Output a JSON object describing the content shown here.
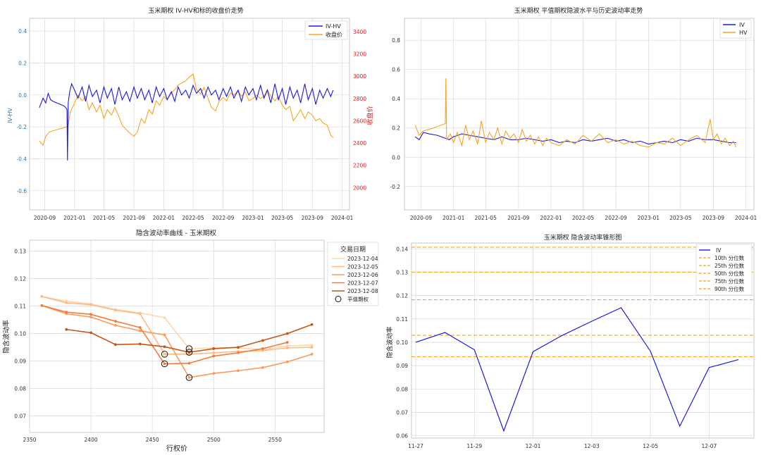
{
  "colors": {
    "iv": "#1a1adc",
    "hv": "#f5a623",
    "red": "#e02020",
    "blue_axis": "#1f77b4",
    "grid": "#d9d9d9",
    "frame": "#b8b8b8"
  },
  "chart_data": [
    {
      "id": "p1",
      "type": "line",
      "title": "玉米期权 IV-HV和标的收盘价走势",
      "ylabel": "IV-HV",
      "y2label": "收盘价",
      "ylim": [
        -0.72,
        0.48
      ],
      "y2lim": [
        1800,
        3520
      ],
      "yticks": [
        "-0.6",
        "-0.4",
        "-0.2",
        "0.0",
        "0.2",
        "0.4"
      ],
      "y2ticks": [
        "2000",
        "2200",
        "2400",
        "2600",
        "2800",
        "3000",
        "3200",
        "3400"
      ],
      "xticks": [
        "2020-09",
        "2021-01",
        "2021-05",
        "2021-09",
        "2022-01",
        "2022-05",
        "2022-09",
        "2023-01",
        "2023-05",
        "2023-09",
        "2024-01"
      ],
      "xlim": [
        "2020-07-01",
        "2024-01-31"
      ],
      "legend": [
        "IV-HV",
        "收盘价"
      ],
      "legend_position": "top-right",
      "series": [
        {
          "name": "IV-HV",
          "axis": "left",
          "x": [
            "2020-08-10",
            "2020-08-25",
            "2020-09-05",
            "2020-09-15",
            "2020-09-25",
            "2020-10-05",
            "2020-10-20",
            "2020-11-05",
            "2020-11-20",
            "2020-12-01",
            "2020-12-03",
            "2020-12-06",
            "2020-12-12",
            "2020-12-20",
            "2021-01-01",
            "2021-01-15",
            "2021-02-01",
            "2021-02-15",
            "2021-03-01",
            "2021-03-15",
            "2021-04-01",
            "2021-04-15",
            "2021-05-01",
            "2021-05-15",
            "2021-06-01",
            "2021-06-15",
            "2021-07-01",
            "2021-07-15",
            "2021-08-01",
            "2021-08-15",
            "2021-09-01",
            "2021-09-15",
            "2021-10-01",
            "2021-10-15",
            "2021-11-01",
            "2021-11-15",
            "2021-12-01",
            "2021-12-15",
            "2022-01-01",
            "2022-01-15",
            "2022-02-01",
            "2022-02-15",
            "2022-03-01",
            "2022-03-15",
            "2022-04-01",
            "2022-04-15",
            "2022-05-01",
            "2022-05-15",
            "2022-06-01",
            "2022-06-15",
            "2022-07-01",
            "2022-07-15",
            "2022-08-01",
            "2022-08-15",
            "2022-09-01",
            "2022-09-15",
            "2022-10-01",
            "2022-10-15",
            "2022-11-01",
            "2022-11-15",
            "2022-12-01",
            "2022-12-15",
            "2023-01-01",
            "2023-01-15",
            "2023-02-01",
            "2023-02-15",
            "2023-03-01",
            "2023-03-15",
            "2023-04-01",
            "2023-04-15",
            "2023-05-01",
            "2023-05-15",
            "2023-06-01",
            "2023-06-15",
            "2023-07-01",
            "2023-07-15",
            "2023-08-01",
            "2023-08-15",
            "2023-09-01",
            "2023-09-15",
            "2023-10-01",
            "2023-10-15",
            "2023-11-01",
            "2023-11-15",
            "2023-11-25"
          ],
          "values": [
            -0.08,
            -0.02,
            -0.05,
            0.01,
            -0.03,
            -0.04,
            -0.05,
            -0.06,
            -0.07,
            -0.09,
            -0.41,
            -0.05,
            0.02,
            0.07,
            0.03,
            -0.02,
            0.05,
            -0.04,
            0.06,
            -0.01,
            0.03,
            -0.05,
            0.05,
            -0.02,
            0.04,
            -0.06,
            0.05,
            -0.03,
            0.02,
            -0.04,
            0.05,
            -0.02,
            0.04,
            -0.03,
            0.03,
            -0.05,
            0.05,
            -0.01,
            0.04,
            -0.03,
            0.02,
            -0.04,
            0.05,
            0.0,
            0.03,
            -0.02,
            0.06,
            0.01,
            0.04,
            -0.02,
            0.05,
            0.0,
            0.03,
            -0.03,
            0.04,
            -0.01,
            0.05,
            -0.02,
            0.03,
            -0.04,
            0.05,
            0.0,
            0.04,
            -0.03,
            0.06,
            -0.02,
            0.03,
            -0.05,
            0.07,
            -0.03,
            0.04,
            -0.06,
            0.05,
            -0.02,
            0.03,
            -0.05,
            0.07,
            -0.03,
            0.04,
            -0.06,
            0.03,
            -0.02,
            0.04,
            -0.01,
            0.03
          ]
        },
        {
          "name": "收盘价",
          "axis": "right",
          "x": [
            "2020-08-10",
            "2020-08-25",
            "2020-09-05",
            "2020-09-20",
            "2020-10-05",
            "2020-10-20",
            "2020-11-05",
            "2020-11-20",
            "2020-12-05",
            "2020-12-15",
            "2021-01-01",
            "2021-01-15",
            "2021-02-01",
            "2021-02-15",
            "2021-03-01",
            "2021-03-15",
            "2021-04-01",
            "2021-04-15",
            "2021-05-01",
            "2021-05-15",
            "2021-06-01",
            "2021-06-15",
            "2021-07-01",
            "2021-07-15",
            "2021-08-01",
            "2021-08-15",
            "2021-09-01",
            "2021-09-15",
            "2021-10-01",
            "2021-10-15",
            "2021-11-01",
            "2021-11-15",
            "2021-12-01",
            "2021-12-15",
            "2022-01-01",
            "2022-01-15",
            "2022-02-01",
            "2022-02-15",
            "2022-03-01",
            "2022-03-15",
            "2022-04-01",
            "2022-04-15",
            "2022-05-01",
            "2022-05-15",
            "2022-06-01",
            "2022-06-15",
            "2022-07-01",
            "2022-07-15",
            "2022-08-01",
            "2022-08-15",
            "2022-09-01",
            "2022-09-15",
            "2022-10-01",
            "2022-10-15",
            "2022-11-01",
            "2022-11-15",
            "2022-12-01",
            "2022-12-15",
            "2023-01-01",
            "2023-01-15",
            "2023-02-01",
            "2023-02-15",
            "2023-03-01",
            "2023-03-15",
            "2023-04-01",
            "2023-04-15",
            "2023-05-01",
            "2023-05-15",
            "2023-06-01",
            "2023-06-15",
            "2023-07-01",
            "2023-07-15",
            "2023-08-01",
            "2023-08-15",
            "2023-09-01",
            "2023-09-15",
            "2023-10-01",
            "2023-10-15",
            "2023-11-01",
            "2023-11-15",
            "2023-11-25"
          ],
          "values": [
            2420,
            2380,
            2460,
            2500,
            2510,
            2520,
            2530,
            2540,
            2550,
            2680,
            2760,
            2830,
            2780,
            2820,
            2700,
            2760,
            2680,
            2740,
            2620,
            2700,
            2650,
            2720,
            2640,
            2560,
            2520,
            2490,
            2460,
            2500,
            2620,
            2580,
            2700,
            2660,
            2780,
            2740,
            2820,
            2790,
            2850,
            2880,
            2920,
            2940,
            2960,
            2990,
            3020,
            2880,
            2840,
            2900,
            2800,
            2720,
            2690,
            2770,
            2810,
            2780,
            2850,
            2830,
            2870,
            2820,
            2860,
            2780,
            2800,
            2830,
            2800,
            2820,
            2880,
            2820,
            2780,
            2820,
            2740,
            2700,
            2730,
            2600,
            2650,
            2700,
            2620,
            2680,
            2650,
            2600,
            2620,
            2580,
            2560,
            2470,
            2450
          ]
        }
      ]
    },
    {
      "id": "p2",
      "type": "line",
      "title": "玉米期权 平值期权隐波水平与历史波动率走势",
      "ylim": [
        -0.36,
        0.95
      ],
      "yticks": [
        "-0.2",
        "0.0",
        "0.2",
        "0.4",
        "0.6",
        "0.8"
      ],
      "xticks": [
        "2020-09",
        "2021-01",
        "2021-05",
        "2021-09",
        "2022-01",
        "2022-05",
        "2022-09",
        "2023-01",
        "2023-05",
        "2023-09",
        "2024-01"
      ],
      "xlim": [
        "2020-07-01",
        "2024-01-31"
      ],
      "legend": [
        "IV",
        "HV"
      ],
      "legend_position": "top-right",
      "series": [
        {
          "name": "IV",
          "x": [
            "2020-08-10",
            "2020-08-25",
            "2020-09-10",
            "2020-10-01",
            "2020-11-01",
            "2020-12-01",
            "2020-12-15",
            "2021-01-01",
            "2021-02-01",
            "2021-03-01",
            "2021-04-01",
            "2021-05-01",
            "2021-06-01",
            "2021-07-01",
            "2021-08-01",
            "2021-09-01",
            "2021-10-01",
            "2021-11-01",
            "2021-12-01",
            "2022-01-01",
            "2022-02-01",
            "2022-03-01",
            "2022-04-01",
            "2022-05-01",
            "2022-06-01",
            "2022-07-01",
            "2022-08-01",
            "2022-09-01",
            "2022-10-01",
            "2022-11-01",
            "2022-12-01",
            "2023-01-01",
            "2023-02-01",
            "2023-03-01",
            "2023-04-01",
            "2023-05-01",
            "2023-06-01",
            "2023-07-01",
            "2023-08-01",
            "2023-09-01",
            "2023-10-01",
            "2023-11-01",
            "2023-11-25"
          ],
          "values": [
            0.14,
            0.12,
            0.17,
            0.16,
            0.15,
            0.13,
            0.12,
            0.14,
            0.16,
            0.15,
            0.14,
            0.13,
            0.12,
            0.14,
            0.12,
            0.12,
            0.13,
            0.12,
            0.11,
            0.12,
            0.1,
            0.11,
            0.1,
            0.12,
            0.11,
            0.12,
            0.13,
            0.11,
            0.12,
            0.1,
            0.11,
            0.09,
            0.1,
            0.11,
            0.1,
            0.12,
            0.11,
            0.13,
            0.12,
            0.12,
            0.11,
            0.1,
            0.1
          ]
        },
        {
          "name": "HV",
          "x": [
            "2020-08-10",
            "2020-08-25",
            "2020-09-10",
            "2020-10-01",
            "2020-11-01",
            "2020-12-01",
            "2020-12-03",
            "2020-12-06",
            "2020-12-20",
            "2021-01-01",
            "2021-01-15",
            "2021-02-01",
            "2021-02-15",
            "2021-03-01",
            "2021-03-15",
            "2021-04-01",
            "2021-04-15",
            "2021-05-01",
            "2021-05-15",
            "2021-06-01",
            "2021-06-15",
            "2021-07-01",
            "2021-07-15",
            "2021-08-01",
            "2021-08-15",
            "2021-09-01",
            "2021-09-15",
            "2021-10-01",
            "2021-10-15",
            "2021-11-01",
            "2021-11-15",
            "2021-12-01",
            "2021-12-15",
            "2022-01-01",
            "2022-02-01",
            "2022-03-01",
            "2022-04-01",
            "2022-05-01",
            "2022-06-01",
            "2022-07-01",
            "2022-08-01",
            "2022-09-01",
            "2022-10-01",
            "2022-11-01",
            "2022-12-01",
            "2023-01-01",
            "2023-02-01",
            "2023-03-01",
            "2023-04-01",
            "2023-05-01",
            "2023-06-01",
            "2023-07-01",
            "2023-08-01",
            "2023-08-20",
            "2023-09-01",
            "2023-09-15",
            "2023-10-01",
            "2023-10-15",
            "2023-11-01",
            "2023-11-15",
            "2023-11-25"
          ],
          "values": [
            0.22,
            0.15,
            0.18,
            0.19,
            0.21,
            0.23,
            0.54,
            0.12,
            0.16,
            0.1,
            0.17,
            0.08,
            0.22,
            0.12,
            0.18,
            0.09,
            0.25,
            0.1,
            0.17,
            0.12,
            0.2,
            0.09,
            0.18,
            0.13,
            0.16,
            0.1,
            0.19,
            0.11,
            0.15,
            0.09,
            0.14,
            0.08,
            0.13,
            0.1,
            0.08,
            0.12,
            0.09,
            0.15,
            0.11,
            0.16,
            0.1,
            0.12,
            0.09,
            0.11,
            0.08,
            0.07,
            0.1,
            0.09,
            0.13,
            0.08,
            0.12,
            0.15,
            0.1,
            0.26,
            0.12,
            0.16,
            0.09,
            0.13,
            0.08,
            0.11,
            0.07
          ]
        }
      ]
    },
    {
      "id": "p3",
      "type": "line",
      "title": "隐含波动率曲线 - 玉米期权",
      "xlabel": "行权价",
      "ylabel": "隐含波动率",
      "xlim": [
        2350,
        2590
      ],
      "ylim": [
        0.064,
        0.134
      ],
      "xticks": [
        2350,
        2400,
        2450,
        2500,
        2550
      ],
      "yticks": [
        "0.07",
        "0.08",
        "0.09",
        "0.10",
        "0.11",
        "0.12",
        "0.13"
      ],
      "legend_title": "交易日期",
      "legend_position": "upper right",
      "atm_label": "平值期权",
      "series": [
        {
          "name": "2023-12-04",
          "color": "#fdd6b0",
          "x": [
            2360,
            2380,
            2400,
            2420,
            2440,
            2460,
            2480,
            2500,
            2520,
            2540,
            2560,
            2580
          ],
          "values": [
            0.1135,
            0.1118,
            0.1108,
            0.1088,
            0.1075,
            0.1058,
            0.0945,
            0.0948,
            0.0948,
            0.0942,
            0.0955,
            0.0958
          ],
          "atm": [
            2480,
            0.0945
          ]
        },
        {
          "name": "2023-12-05",
          "color": "#fdbb84",
          "x": [
            2360,
            2380,
            2400,
            2420,
            2440,
            2460,
            2480,
            2500,
            2520,
            2540,
            2560,
            2580
          ],
          "values": [
            0.1135,
            0.1112,
            0.1105,
            0.1085,
            0.1072,
            0.0925,
            0.0925,
            0.093,
            0.0935,
            0.0938,
            0.0948,
            0.095
          ],
          "atm": [
            2460,
            0.0925
          ]
        },
        {
          "name": "2023-12-06",
          "color": "#fc9a5a",
          "x": [
            2360,
            2380,
            2400,
            2420,
            2440,
            2460,
            2480,
            2500,
            2520,
            2540,
            2560,
            2580
          ],
          "values": [
            0.1102,
            0.1072,
            0.106,
            0.103,
            0.101,
            0.0995,
            0.084,
            0.0855,
            0.0865,
            0.0876,
            0.0897,
            0.0925
          ],
          "atm": [
            2480,
            0.084
          ]
        },
        {
          "name": "2023-12-07",
          "color": "#f07d3c",
          "x": [
            2360,
            2380,
            2400,
            2420,
            2440,
            2460,
            2480,
            2500,
            2520,
            2540,
            2560
          ],
          "values": [
            0.1102,
            0.1078,
            0.107,
            0.1045,
            0.1022,
            0.089,
            0.0892,
            0.0918,
            0.093,
            0.0945,
            0.0968
          ],
          "atm": [
            2460,
            0.089
          ]
        },
        {
          "name": "2023-12-08",
          "color": "#c65518",
          "x": [
            2380,
            2400,
            2420,
            2440,
            2460,
            2480,
            2500,
            2520,
            2540,
            2560,
            2580
          ],
          "values": [
            0.1015,
            0.1003,
            0.096,
            0.0962,
            0.0952,
            0.0932,
            0.0945,
            0.095,
            0.0975,
            0.1,
            0.1033
          ],
          "atm": [
            2480,
            0.0932
          ]
        }
      ]
    },
    {
      "id": "p4",
      "type": "line",
      "title": "玉米期权 隐含波动率锥形图",
      "ylabel": "隐含波动率",
      "ylim": [
        0.059,
        0.1425
      ],
      "yticks": [
        "0.06",
        "0.07",
        "0.08",
        "0.09",
        "0.10",
        "0.11",
        "0.12",
        "0.13",
        "0.14"
      ],
      "x": [
        "11-27",
        "11-28",
        "11-29",
        "11-30",
        "12-01",
        "12-02",
        "12-03",
        "12-04",
        "12-05",
        "12-06",
        "12-07",
        "12-08"
      ],
      "xticks": [
        "11-27",
        "11-29",
        "12-01",
        "12-03",
        "12-05",
        "12-07"
      ],
      "series": [
        {
          "name": "IV",
          "values": [
            0.1,
            0.1042,
            0.0968,
            0.0621,
            0.096,
            0.103,
            0.109,
            0.1148,
            0.0962,
            0.0641,
            0.0892,
            0.0926
          ]
        }
      ],
      "percentiles": [
        {
          "name": "10th 分位数",
          "value": 0.0938
        },
        {
          "name": "25th 分位数",
          "value": 0.103
        },
        {
          "name": "50th 分位数",
          "value": 0.1182
        },
        {
          "name": "75th 分位数",
          "value": 0.13
        },
        {
          "name": "90th 分位数",
          "value": 0.1407
        }
      ],
      "legend_position": "top-right"
    }
  ]
}
